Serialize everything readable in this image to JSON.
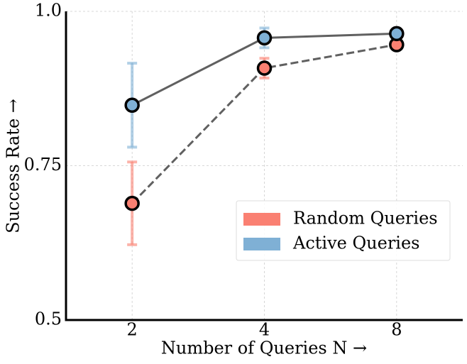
{
  "chart_data": {
    "type": "line",
    "xlabel": "Number of Queries N →",
    "ylabel": "Success Rate →",
    "categories": [
      "2",
      "4",
      "8"
    ],
    "series": [
      {
        "name": "Random Queries",
        "color": "#fa8072",
        "linestyle": "dashed",
        "values": [
          0.689,
          0.908,
          0.946
        ],
        "errors": [
          0.067,
          0.016,
          0.002
        ]
      },
      {
        "name": "Active Queries",
        "color": "#7fb0d5",
        "linestyle": "solid",
        "values": [
          0.848,
          0.957,
          0.964
        ],
        "errors": [
          0.068,
          0.016,
          0.002
        ]
      }
    ],
    "ylim": [
      0.5,
      1.0
    ],
    "yticks": [
      0.5,
      0.75,
      {
        "value": 1.0,
        "label": "1.0"
      }
    ],
    "grid": true,
    "legend": "lower right"
  }
}
